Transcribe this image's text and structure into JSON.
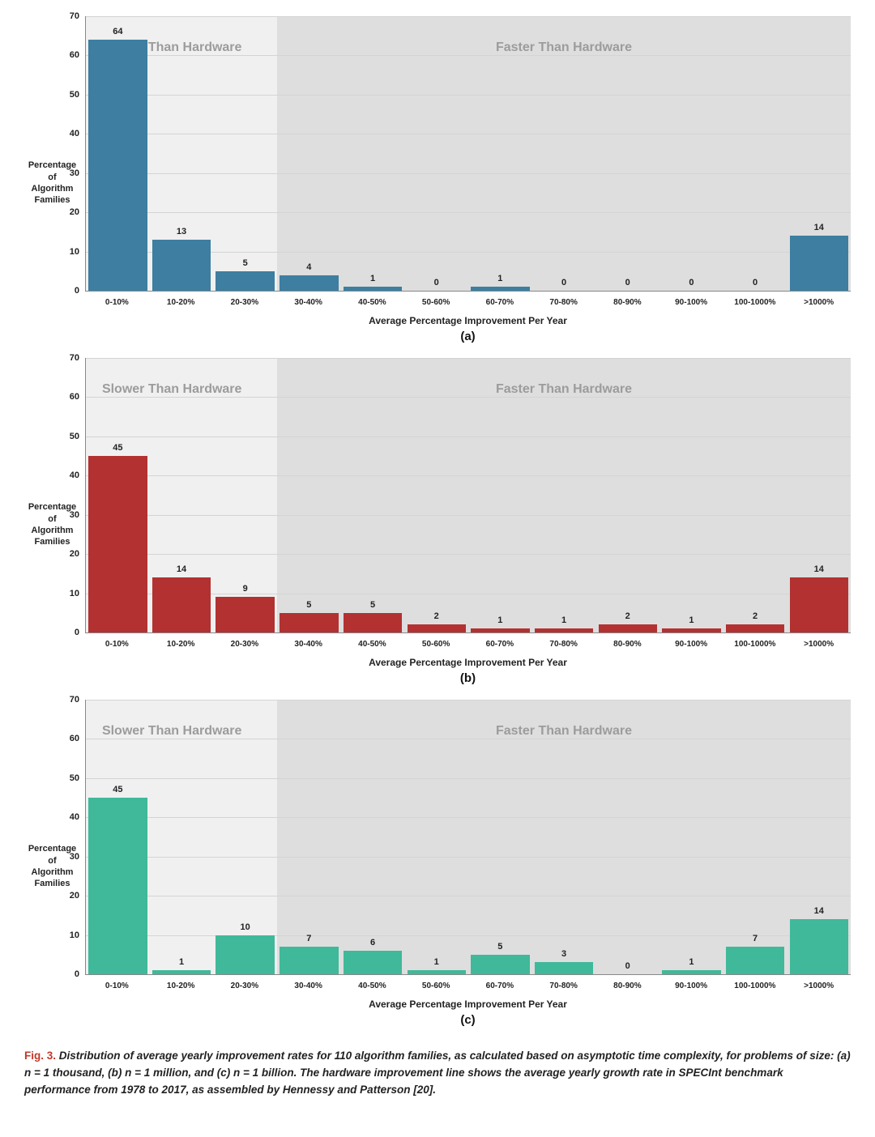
{
  "global": {
    "categories": [
      "0-10%",
      "10-20%",
      "20-30%",
      "30-40%",
      "40-50%",
      "50-60%",
      "60-70%",
      "70-80%",
      "80-90%",
      "90-100%",
      "100-1000%",
      ">1000%"
    ],
    "xlabel": "Average Percentage Improvement Per Year",
    "ylabel_lines": [
      "Percentage",
      "of",
      "Algorithm",
      "Families"
    ],
    "ylim": [
      0,
      70
    ],
    "ytick_step": 10,
    "split_after_index": 3,
    "region_left_label": "Slower Than Hardware",
    "region_right_label": "Faster Than Hardware",
    "region_left_bg": "#f0f0f0",
    "region_right_bg": "#dedede",
    "grid_color": "#d4d4d4",
    "tick_font_size": 11,
    "label_font_size": 12
  },
  "charts": [
    {
      "id": "a",
      "subfig_label": "(a)",
      "bar_color": "#3d7ea1",
      "values": [
        64,
        13,
        5,
        4,
        1,
        0,
        1,
        0,
        0,
        0,
        0,
        14
      ]
    },
    {
      "id": "b",
      "subfig_label": "(b)",
      "bar_color": "#b33131",
      "values": [
        45,
        14,
        9,
        5,
        5,
        2,
        1,
        1,
        2,
        1,
        2,
        14
      ]
    },
    {
      "id": "c",
      "subfig_label": "(c)",
      "bar_color": "#3fb99a",
      "values": [
        45,
        1,
        10,
        7,
        6,
        1,
        5,
        3,
        0,
        1,
        7,
        14
      ]
    }
  ],
  "caption": {
    "fig_label": "Fig. 3.",
    "text": "Distribution of average yearly improvement rates for 110 algorithm families, as calculated based on asymptotic time complexity, for problems of size: (a) n = 1 thousand, (b) n = 1 million, and (c) n = 1 billion. The hardware improvement line shows the average yearly growth rate in SPECInt benchmark performance from 1978 to 2017, as assembled by Hennessy and Patterson [20]."
  }
}
